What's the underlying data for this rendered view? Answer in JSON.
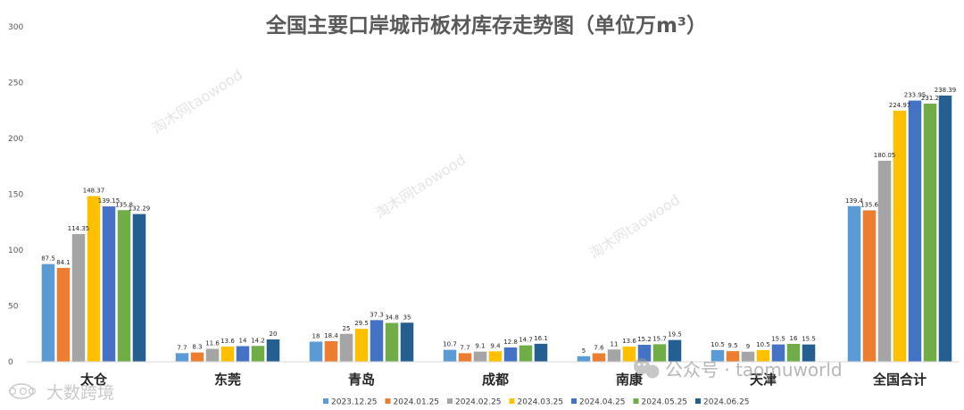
{
  "chart_data": {
    "type": "bar",
    "title": "全国主要口岸城市板材库存走势图（单位万m³）",
    "categories": [
      "太仓",
      "东莞",
      "青岛",
      "成都",
      "南康",
      "天津",
      "全国合计"
    ],
    "series": [
      {
        "name": "2023.12.25",
        "color": "#5b9bd5",
        "values": [
          87.5,
          7.7,
          18,
          10.7,
          5,
          10.5,
          139.4
        ]
      },
      {
        "name": "2024.01.25",
        "color": "#ed7d31",
        "values": [
          84.1,
          8.3,
          18.4,
          7.7,
          7.6,
          9.5,
          135.6
        ]
      },
      {
        "name": "2024.02.25",
        "color": "#a5a5a5",
        "values": [
          114.35,
          11.6,
          25,
          9.1,
          11,
          9,
          180.05
        ]
      },
      {
        "name": "2024.03.25",
        "color": "#ffc000",
        "values": [
          148.37,
          13.6,
          29.5,
          9.4,
          13.6,
          10.5,
          224.97
        ]
      },
      {
        "name": "2024.04.25",
        "color": "#4472c4",
        "values": [
          139.15,
          14,
          37.3,
          12.8,
          15.2,
          15.5,
          233.95
        ]
      },
      {
        "name": "2024.05.25",
        "color": "#70ad47",
        "values": [
          135.8,
          14.2,
          34.8,
          14.7,
          15.7,
          16,
          231.2
        ]
      },
      {
        "name": "2024.06.25",
        "color": "#255e91",
        "values": [
          132.29,
          20,
          35,
          16.1,
          19.5,
          15.5,
          238.39
        ]
      }
    ],
    "data_labels": [
      [
        "87.5",
        "7.7",
        "18",
        "10.7",
        "5",
        "10.5",
        "139.4"
      ],
      [
        "84.1",
        "8.3",
        "18.4",
        "7.7",
        "7.6",
        "9.5",
        "135.6"
      ],
      [
        "114.35",
        "11.6",
        "25",
        "9.1",
        "11",
        "9",
        "180.05"
      ],
      [
        "148.37",
        "13.6",
        "29.5",
        "9.4",
        "13.6",
        "10.5",
        "224.97"
      ],
      [
        "139.15",
        "14",
        "37.3",
        "12.8",
        "15.2",
        "15.5",
        "233.95"
      ],
      [
        "135.8",
        "14.2",
        "34.8",
        "14.7",
        "15.7",
        "16",
        "231.2"
      ],
      [
        "132.29",
        "20",
        "35",
        "16.1",
        "19.5",
        "15.5",
        "238.39"
      ]
    ],
    "ylim": [
      0,
      300
    ],
    "yticks": [
      "0",
      "50",
      "100",
      "150",
      "200",
      "250",
      "300"
    ],
    "ytick_values": [
      0,
      50,
      100,
      150,
      200,
      250,
      300
    ],
    "xlabel": "",
    "ylabel": "",
    "grid": false,
    "legend_position": "bottom",
    "axis_color": "#d9d9d9",
    "title_color": "#595959"
  },
  "watermarks": {
    "site": "淘木网taowood",
    "wechat": "公众号 · taomuworld",
    "corner": "大数跨境"
  }
}
